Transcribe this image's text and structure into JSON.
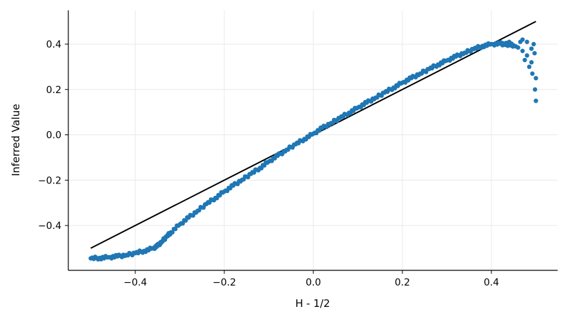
{
  "chart_data": {
    "type": "scatter",
    "xlabel": "H - 1/2",
    "ylabel": "Inferred Value",
    "xlim": [
      -0.55,
      0.55
    ],
    "ylim": [
      -0.6,
      0.55
    ],
    "grid": true,
    "x_ticks": [
      -0.4,
      -0.2,
      0.0,
      0.2,
      0.4
    ],
    "x_tick_labels": [
      "−0.4",
      "−0.2",
      "0.0",
      "0.2",
      "0.4"
    ],
    "y_ticks": [
      -0.4,
      -0.2,
      0.0,
      0.2,
      0.4
    ],
    "y_tick_labels": [
      "−0.4",
      "−0.2",
      "0.0",
      "0.2",
      "0.4"
    ],
    "colors": {
      "points": "#1f77b4",
      "reference_line": "#000000",
      "grid": "#e8e8e8"
    },
    "reference_line": {
      "x": [
        -0.5,
        0.5
      ],
      "y": [
        -0.5,
        0.5
      ]
    },
    "series": [
      {
        "values_xy": [
          [
            -0.5,
            -0.545
          ],
          [
            -0.48,
            -0.543
          ],
          [
            -0.46,
            -0.54
          ],
          [
            -0.44,
            -0.536
          ],
          [
            -0.42,
            -0.53
          ],
          [
            -0.4,
            -0.522
          ],
          [
            -0.38,
            -0.512
          ],
          [
            -0.36,
            -0.5
          ],
          [
            -0.35,
            -0.49
          ],
          [
            -0.34,
            -0.47
          ],
          [
            -0.33,
            -0.45
          ],
          [
            -0.32,
            -0.43
          ],
          [
            -0.3,
            -0.395
          ],
          [
            -0.28,
            -0.365
          ],
          [
            -0.26,
            -0.335
          ],
          [
            -0.24,
            -0.305
          ],
          [
            -0.22,
            -0.278
          ],
          [
            -0.2,
            -0.25
          ],
          [
            -0.18,
            -0.224
          ],
          [
            -0.16,
            -0.198
          ],
          [
            -0.14,
            -0.172
          ],
          [
            -0.12,
            -0.146
          ],
          [
            -0.1,
            -0.118
          ],
          [
            -0.08,
            -0.092
          ],
          [
            -0.06,
            -0.066
          ],
          [
            -0.04,
            -0.042
          ],
          [
            -0.02,
            -0.018
          ],
          [
            0.0,
            0.005
          ],
          [
            0.02,
            0.03
          ],
          [
            0.04,
            0.052
          ],
          [
            0.06,
            0.075
          ],
          [
            0.08,
            0.097
          ],
          [
            0.1,
            0.12
          ],
          [
            0.12,
            0.142
          ],
          [
            0.14,
            0.164
          ],
          [
            0.16,
            0.186
          ],
          [
            0.18,
            0.208
          ],
          [
            0.2,
            0.23
          ],
          [
            0.22,
            0.25
          ],
          [
            0.24,
            0.27
          ],
          [
            0.26,
            0.29
          ],
          [
            0.28,
            0.31
          ],
          [
            0.3,
            0.328
          ],
          [
            0.32,
            0.345
          ],
          [
            0.34,
            0.362
          ],
          [
            0.36,
            0.378
          ],
          [
            0.38,
            0.392
          ],
          [
            0.4,
            0.4
          ],
          [
            0.42,
            0.402
          ],
          [
            0.43,
            0.4
          ],
          [
            0.44,
            0.398
          ],
          [
            0.45,
            0.395
          ],
          [
            0.46,
            0.385
          ],
          [
            0.47,
            0.37
          ],
          [
            0.48,
            0.35
          ],
          [
            0.49,
            0.32
          ],
          [
            0.5,
            0.25
          ],
          [
            0.5,
            0.15
          ],
          [
            0.495,
            0.4
          ],
          [
            0.49,
            0.38
          ],
          [
            0.485,
            0.3
          ],
          [
            0.475,
            0.33
          ],
          [
            0.47,
            0.42
          ],
          [
            0.48,
            0.41
          ],
          [
            0.497,
            0.36
          ],
          [
            0.492,
            0.27
          ],
          [
            0.498,
            0.2
          ],
          [
            0.465,
            0.41
          ],
          [
            0.455,
            0.39
          ],
          [
            0.44,
            0.41
          ]
        ]
      }
    ]
  }
}
